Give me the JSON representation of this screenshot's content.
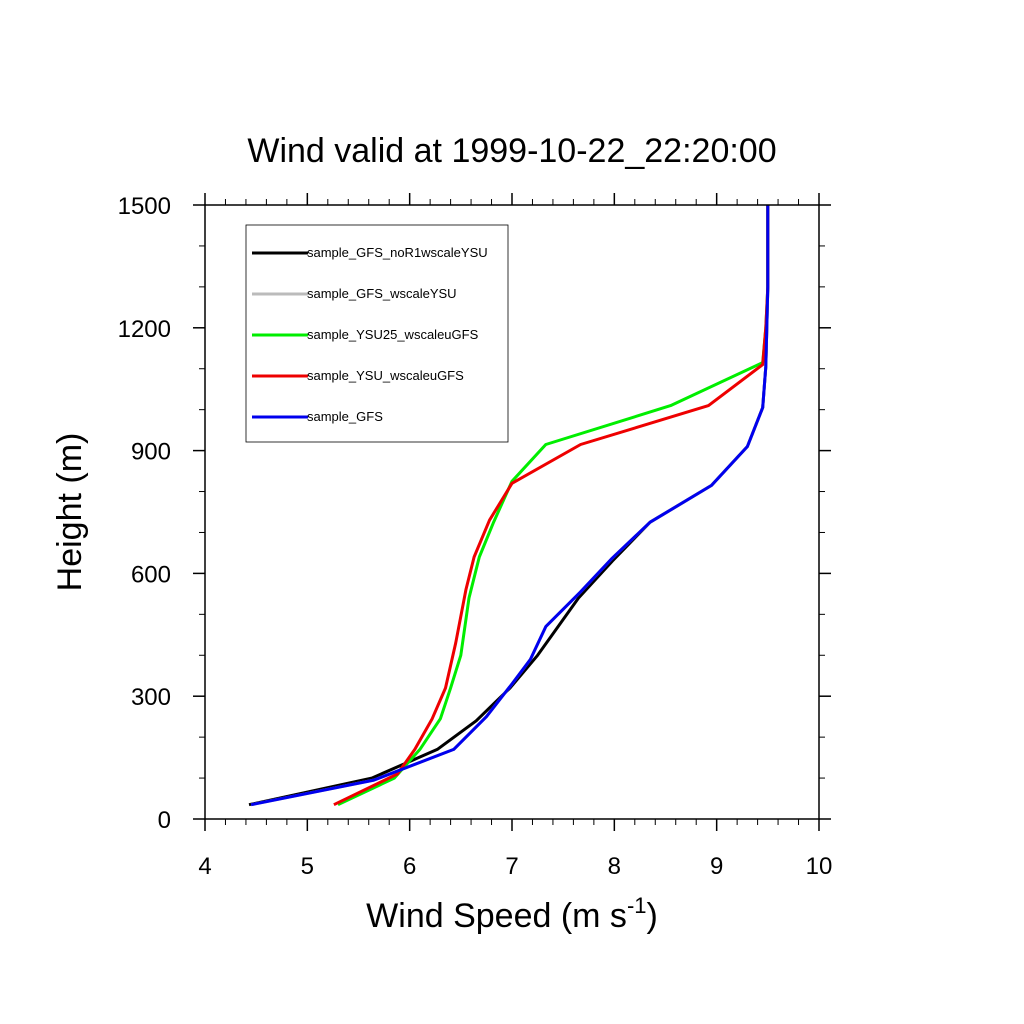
{
  "chart_data": {
    "type": "line",
    "title": "Wind valid at 1999-10-22_22:20:00",
    "xlabel": {
      "main": "Wind Speed (m s",
      "superscript": "-1",
      "close": ")"
    },
    "ylabel": "Height (m)",
    "xlim": [
      4,
      10
    ],
    "ylim": [
      0,
      1500
    ],
    "x_ticks": [
      "4",
      "5",
      "6",
      "7",
      "8",
      "9",
      "10"
    ],
    "y_ticks": [
      "0",
      "300",
      "600",
      "900",
      "1200",
      "1500"
    ],
    "grid": false,
    "legend_position": "top-left",
    "series": [
      {
        "name": "sample_GFS_noR1wscaleYSU",
        "color": "#000000",
        "points": [
          [
            4.43,
            35
          ],
          [
            5.63,
            100
          ],
          [
            6.27,
            170
          ],
          [
            6.65,
            240
          ],
          [
            6.98,
            320
          ],
          [
            7.25,
            400
          ],
          [
            7.65,
            540
          ],
          [
            7.98,
            630
          ],
          [
            8.35,
            725
          ],
          [
            8.95,
            815
          ],
          [
            9.3,
            910
          ],
          [
            9.45,
            1005
          ],
          [
            9.48,
            1105
          ],
          [
            9.49,
            1200
          ],
          [
            9.5,
            1300
          ],
          [
            9.5,
            1400
          ],
          [
            9.5,
            1500
          ]
        ]
      },
      {
        "name": "sample_GFS_wscaleYSU",
        "color": "#bbbbbb",
        "points": [
          [
            4.45,
            35
          ],
          [
            5.65,
            95
          ],
          [
            6.43,
            170
          ],
          [
            6.75,
            250
          ],
          [
            7.0,
            330
          ],
          [
            7.18,
            390
          ],
          [
            7.33,
            470
          ],
          [
            7.67,
            555
          ],
          [
            7.97,
            635
          ],
          [
            8.35,
            725
          ],
          [
            8.95,
            815
          ],
          [
            9.3,
            910
          ],
          [
            9.45,
            1005
          ],
          [
            9.48,
            1105
          ],
          [
            9.49,
            1200
          ],
          [
            9.5,
            1300
          ],
          [
            9.5,
            1400
          ],
          [
            9.5,
            1500
          ]
        ]
      },
      {
        "name": "sample_YSU25_wscaleuGFS",
        "color": "#00ee00",
        "points": [
          [
            5.3,
            35
          ],
          [
            5.85,
            100
          ],
          [
            6.1,
            170
          ],
          [
            6.3,
            245
          ],
          [
            6.4,
            320
          ],
          [
            6.5,
            400
          ],
          [
            6.58,
            540
          ],
          [
            6.68,
            640
          ],
          [
            6.82,
            725
          ],
          [
            7.0,
            825
          ],
          [
            7.33,
            915
          ],
          [
            8.55,
            1010
          ],
          [
            9.45,
            1115
          ],
          [
            9.48,
            1200
          ],
          [
            9.5,
            1300
          ],
          [
            9.5,
            1400
          ],
          [
            9.5,
            1500
          ]
        ]
      },
      {
        "name": "sample_YSU_wscaleuGFS",
        "color": "#ee0000",
        "points": [
          [
            5.26,
            35
          ],
          [
            5.88,
            110
          ],
          [
            6.05,
            170
          ],
          [
            6.22,
            245
          ],
          [
            6.35,
            320
          ],
          [
            6.45,
            430
          ],
          [
            6.55,
            560
          ],
          [
            6.63,
            640
          ],
          [
            6.78,
            730
          ],
          [
            7.0,
            820
          ],
          [
            7.67,
            915
          ],
          [
            8.92,
            1010
          ],
          [
            9.45,
            1110
          ],
          [
            9.48,
            1200
          ],
          [
            9.5,
            1300
          ],
          [
            9.5,
            1400
          ],
          [
            9.5,
            1500
          ]
        ]
      },
      {
        "name": "sample_GFS",
        "color": "#0000ee",
        "points": [
          [
            4.45,
            35
          ],
          [
            5.65,
            95
          ],
          [
            6.43,
            170
          ],
          [
            6.75,
            250
          ],
          [
            7.0,
            330
          ],
          [
            7.18,
            390
          ],
          [
            7.33,
            470
          ],
          [
            7.67,
            555
          ],
          [
            7.97,
            635
          ],
          [
            8.35,
            725
          ],
          [
            8.95,
            815
          ],
          [
            9.3,
            910
          ],
          [
            9.45,
            1005
          ],
          [
            9.48,
            1105
          ],
          [
            9.49,
            1200
          ],
          [
            9.5,
            1300
          ],
          [
            9.5,
            1400
          ],
          [
            9.5,
            1500
          ]
        ]
      }
    ]
  }
}
